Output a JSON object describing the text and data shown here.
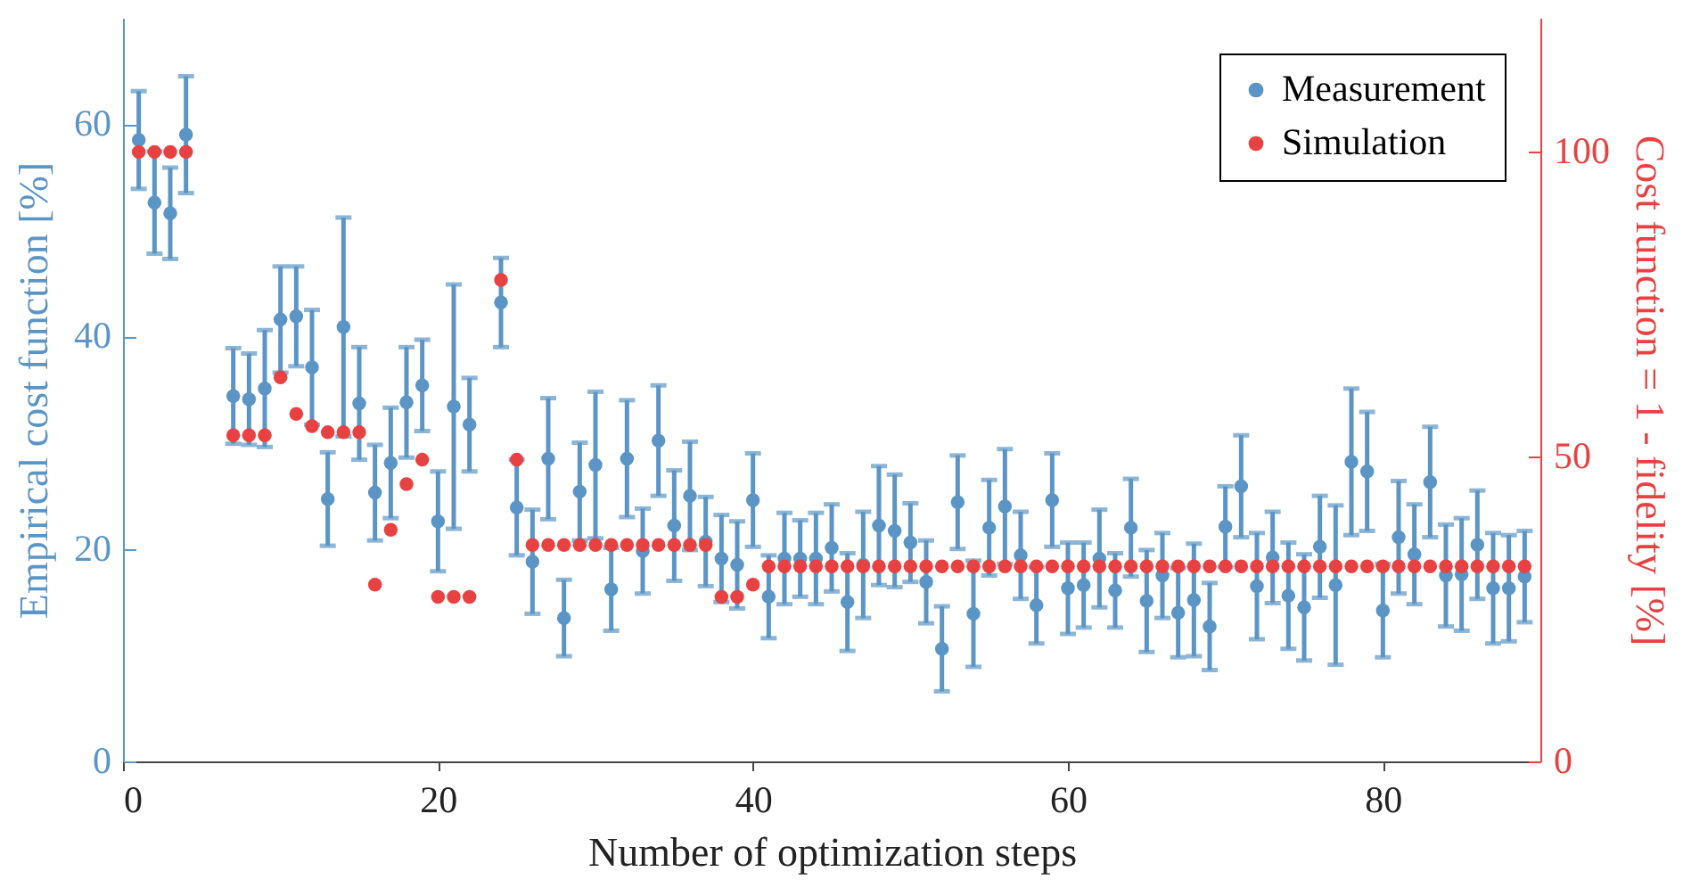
{
  "chart_data": {
    "type": "scatter",
    "xlabel": "Number of optimization steps",
    "ylabel": "Empirical cost function [%]",
    "y2label": "Cost function = 1 - fidelity [%]",
    "xlim": [
      0,
      90
    ],
    "xticks": [
      0,
      20,
      40,
      60,
      80
    ],
    "ylim": [
      0,
      70
    ],
    "yticks": [
      0,
      20,
      40,
      60
    ],
    "y2lim": [
      0,
      122
    ],
    "y2ticks": [
      0,
      50,
      100
    ],
    "legend": "top right",
    "marker": "circle",
    "series": [
      {
        "name": "Measurement",
        "type": "scatter",
        "color": "#5b95c5",
        "x": [
          1,
          2,
          3,
          4,
          7,
          8,
          9,
          10,
          11,
          12,
          13,
          14,
          15,
          16,
          17,
          18,
          19,
          20,
          21,
          22,
          24,
          25,
          26,
          27,
          28,
          29,
          30,
          31,
          32,
          33,
          34,
          35,
          36,
          37,
          38,
          39,
          40,
          41,
          42,
          43,
          44,
          45,
          46,
          47,
          48,
          49,
          50,
          51,
          52,
          53,
          54,
          55,
          56,
          57,
          58,
          59,
          60,
          61,
          62,
          63,
          64,
          65,
          66,
          67,
          68,
          69,
          70,
          71,
          72,
          73,
          74,
          75,
          76,
          77,
          78,
          79,
          80,
          81,
          82,
          83,
          84,
          85,
          86,
          87,
          88,
          89
        ],
        "values": [
          58.5,
          52.6,
          51.6,
          59.0,
          34.4,
          34.1,
          35.1,
          41.6,
          41.9,
          37.1,
          24.7,
          40.9,
          33.7,
          25.3,
          28.1,
          33.8,
          35.4,
          22.6,
          33.4,
          31.7,
          43.2,
          23.9,
          18.8,
          28.5,
          13.5,
          25.4,
          27.9,
          16.2,
          28.5,
          19.8,
          30.2,
          22.2,
          25.0,
          20.7,
          19.1,
          18.5,
          24.6,
          15.5,
          19.1,
          19.1,
          19.1,
          20.1,
          15.0,
          18.5,
          22.2,
          21.7,
          20.6,
          16.9,
          10.6,
          24.4,
          13.9,
          22.0,
          24.0,
          19.4,
          14.7,
          24.6,
          16.3,
          16.6,
          19.1,
          16.1,
          22.0,
          15.1,
          17.5,
          14.0,
          15.2,
          12.7,
          22.1,
          25.9,
          16.5,
          19.2,
          15.6,
          14.5,
          20.2,
          16.6,
          28.2,
          27.3,
          14.2,
          21.1,
          19.5,
          26.3,
          17.5,
          17.6,
          20.4,
          16.3,
          16.3,
          17.4
        ],
        "errors": [
          4.6,
          4.8,
          4.3,
          5.5,
          4.5,
          4.3,
          5.5,
          5.0,
          4.7,
          5.4,
          4.4,
          10.3,
          5.3,
          4.5,
          5.2,
          5.2,
          4.3,
          4.7,
          11.5,
          4.4,
          4.2,
          4.5,
          4.9,
          5.7,
          3.6,
          4.6,
          6.9,
          3.9,
          5.5,
          4.0,
          5.2,
          5.2,
          5.1,
          4.2,
          4.1,
          4.1,
          4.4,
          3.9,
          4.3,
          3.6,
          4.3,
          4.1,
          4.6,
          5.0,
          5.6,
          5.3,
          3.7,
          3.9,
          4.0,
          4.4,
          5.0,
          4.5,
          5.4,
          4.1,
          3.6,
          4.4,
          4.3,
          4.0,
          4.6,
          3.5,
          4.6,
          4.8,
          4.0,
          4.2,
          5.3,
          4.1,
          3.8,
          4.8,
          5.0,
          4.3,
          5.0,
          5.0,
          4.8,
          7.5,
          6.9,
          5.6,
          4.4,
          5.3,
          4.7,
          5.2,
          4.8,
          5.3,
          5.1,
          5.2,
          5.0,
          4.3
        ]
      },
      {
        "name": "Simulation",
        "type": "scatter",
        "axis": "y2",
        "color": "#e84142",
        "x": [
          1,
          2,
          3,
          4,
          7,
          8,
          9,
          10,
          11,
          12,
          13,
          14,
          15,
          16,
          17,
          18,
          19,
          20,
          21,
          22,
          24,
          25,
          26,
          27,
          28,
          29,
          30,
          31,
          32,
          33,
          34,
          35,
          36,
          37,
          38,
          39,
          40,
          41,
          42,
          43,
          44,
          45,
          46,
          47,
          48,
          49,
          50,
          51,
          52,
          53,
          54,
          55,
          56,
          57,
          58,
          59,
          60,
          61,
          62,
          63,
          64,
          65,
          66,
          67,
          68,
          69,
          70,
          71,
          72,
          73,
          74,
          75,
          76,
          77,
          78,
          79,
          80,
          81,
          82,
          83,
          84,
          85,
          86,
          87,
          88,
          89
        ],
        "values": [
          100,
          100,
          100,
          100,
          53.5,
          53.5,
          53.5,
          63,
          57,
          55,
          54,
          54,
          54,
          29,
          38,
          45.5,
          49.5,
          27,
          27,
          27,
          79,
          49.5,
          35.5,
          35.5,
          35.5,
          35.5,
          35.5,
          35.5,
          35.5,
          35.5,
          35.5,
          35.5,
          35.5,
          35.5,
          27,
          27,
          29,
          32,
          32,
          32,
          32,
          32,
          32,
          32,
          32,
          32,
          32,
          32,
          32,
          32,
          32,
          32,
          32,
          32,
          32,
          32,
          32,
          32,
          32,
          32,
          32,
          32,
          32,
          32,
          32,
          32,
          32,
          32,
          32,
          32,
          32,
          32,
          32,
          32,
          32,
          32,
          32,
          32,
          32,
          32,
          32,
          32,
          32,
          32,
          32,
          32
        ]
      }
    ]
  }
}
